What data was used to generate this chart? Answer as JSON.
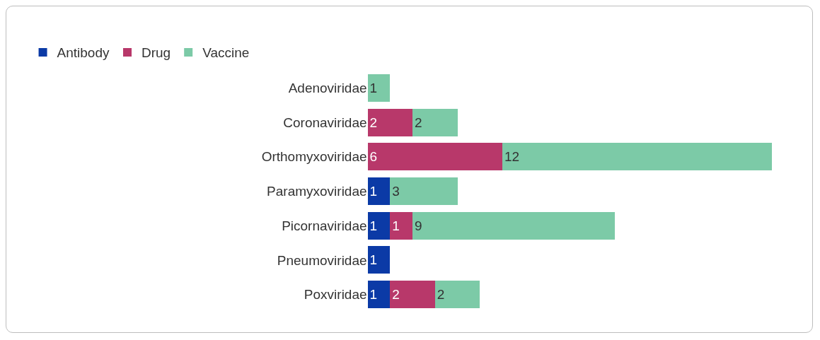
{
  "chart_data": {
    "type": "bar",
    "orientation": "horizontal",
    "stacked": true,
    "data_labels": true,
    "legend": "top left",
    "grid": false,
    "categories": [
      "Adenoviridae",
      "Coronaviridae",
      "Orthomyxoviridae",
      "Paramyxoviridae",
      "Picornaviridae",
      "Pneumoviridae",
      "Poxviridae"
    ],
    "series": [
      {
        "name": "Antibody",
        "color": "#0b3aa6",
        "values": [
          null,
          null,
          null,
          1,
          1,
          1,
          1
        ]
      },
      {
        "name": "Drug",
        "color": "#b8386a",
        "values": [
          null,
          2,
          6,
          null,
          1,
          null,
          2
        ]
      },
      {
        "name": "Vaccine",
        "color": "#7ccaa7",
        "values": [
          1,
          2,
          12,
          3,
          9,
          null,
          2
        ]
      }
    ]
  }
}
